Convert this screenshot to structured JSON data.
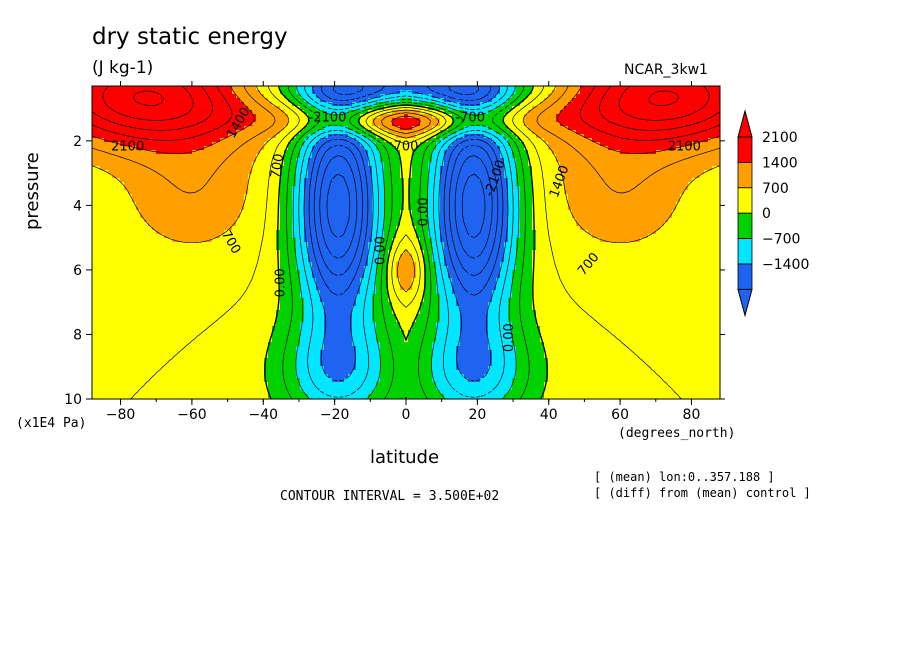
{
  "header": {
    "title": "dry static energy",
    "units": "(J kg-1)",
    "case_name": "NCAR_3kw1"
  },
  "footer": {
    "contour_interval": "CONTOUR INTERVAL = 3.500E+02",
    "note_mean": "[ (mean) lon:0..357.188 ]",
    "note_diff": "[ (diff) from (mean) control ]"
  },
  "chart_data": {
    "type": "heatmap",
    "title": "dry static energy",
    "subtitle": "(J kg-1)",
    "xlabel": "latitude",
    "xunits": "(degrees_north)",
    "ylabel": "pressure",
    "yunits": "(x1E4 Pa)",
    "xlim": [
      -88,
      88
    ],
    "ylim": [
      10,
      0.3
    ],
    "y_inverted": true,
    "xticks": [
      -80,
      -60,
      -40,
      -20,
      0,
      20,
      40,
      60,
      80
    ],
    "yticks": [
      2,
      4,
      6,
      8,
      10
    ],
    "colorbar": {
      "levels": [
        -1400,
        -700,
        0,
        700,
        1400,
        2100
      ],
      "labels": [
        "2100",
        "1400",
        "700",
        "0",
        "-700",
        "-1400"
      ],
      "colors": [
        "#1e64f0",
        "#00e6ff",
        "#00d200",
        "#ffff00",
        "#ffa000",
        "#ff0000"
      ]
    },
    "contour_labels": [
      "2100",
      "1400",
      "700",
      "0.00",
      "-700",
      "-1400",
      "-2100"
    ],
    "regions": [
      {
        "lat_range": [
          -88,
          -45
        ],
        "p_range": [
          0.3,
          2.5
        ],
        "value_approx": 2100
      },
      {
        "lat_range": [
          45,
          88
        ],
        "p_range": [
          0.3,
          2.5
        ],
        "value_approx": 2100
      },
      {
        "lat_range": [
          -32,
          -8
        ],
        "p_range": [
          1.5,
          8
        ],
        "value_approx": -1750
      },
      {
        "lat_range": [
          8,
          32
        ],
        "p_range": [
          1.5,
          8
        ],
        "value_approx": -1750
      },
      {
        "lat_range": [
          -3,
          3
        ],
        "p_range": [
          5.5,
          6.5
        ],
        "value_approx": 700
      },
      {
        "lat_range": [
          -88,
          88
        ],
        "p_range": [
          4,
          10
        ],
        "value_approx": 350
      }
    ]
  }
}
